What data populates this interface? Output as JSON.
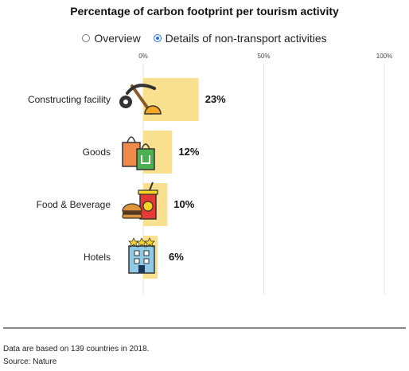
{
  "title": "Percentage of carbon footprint per tourism activity",
  "options": [
    {
      "label": "Overview",
      "selected": false
    },
    {
      "label": "Details of non-transport activities",
      "selected": true
    }
  ],
  "chart_data": {
    "type": "bar",
    "orientation": "horizontal",
    "title": "Percentage of carbon footprint per tourism activity",
    "categories": [
      "Constructing facility",
      "Goods",
      "Food & Beverage",
      "Hotels"
    ],
    "values": [
      23,
      12,
      10,
      6
    ],
    "value_labels": [
      "23%",
      "12%",
      "10%",
      "6%"
    ],
    "icons": [
      "construction-icon",
      "shopping-bags-icon",
      "fast-food-icon",
      "hotel-icon"
    ],
    "xlim": [
      0,
      100
    ],
    "xticks": [
      0,
      50,
      100
    ],
    "xtick_labels": [
      "0%",
      "50%",
      "100%"
    ],
    "grid": true,
    "bar_color": "#f9e08e"
  },
  "footer": {
    "note": "Data are based on 139 countries in 2018.",
    "source": "Source: Nature"
  }
}
